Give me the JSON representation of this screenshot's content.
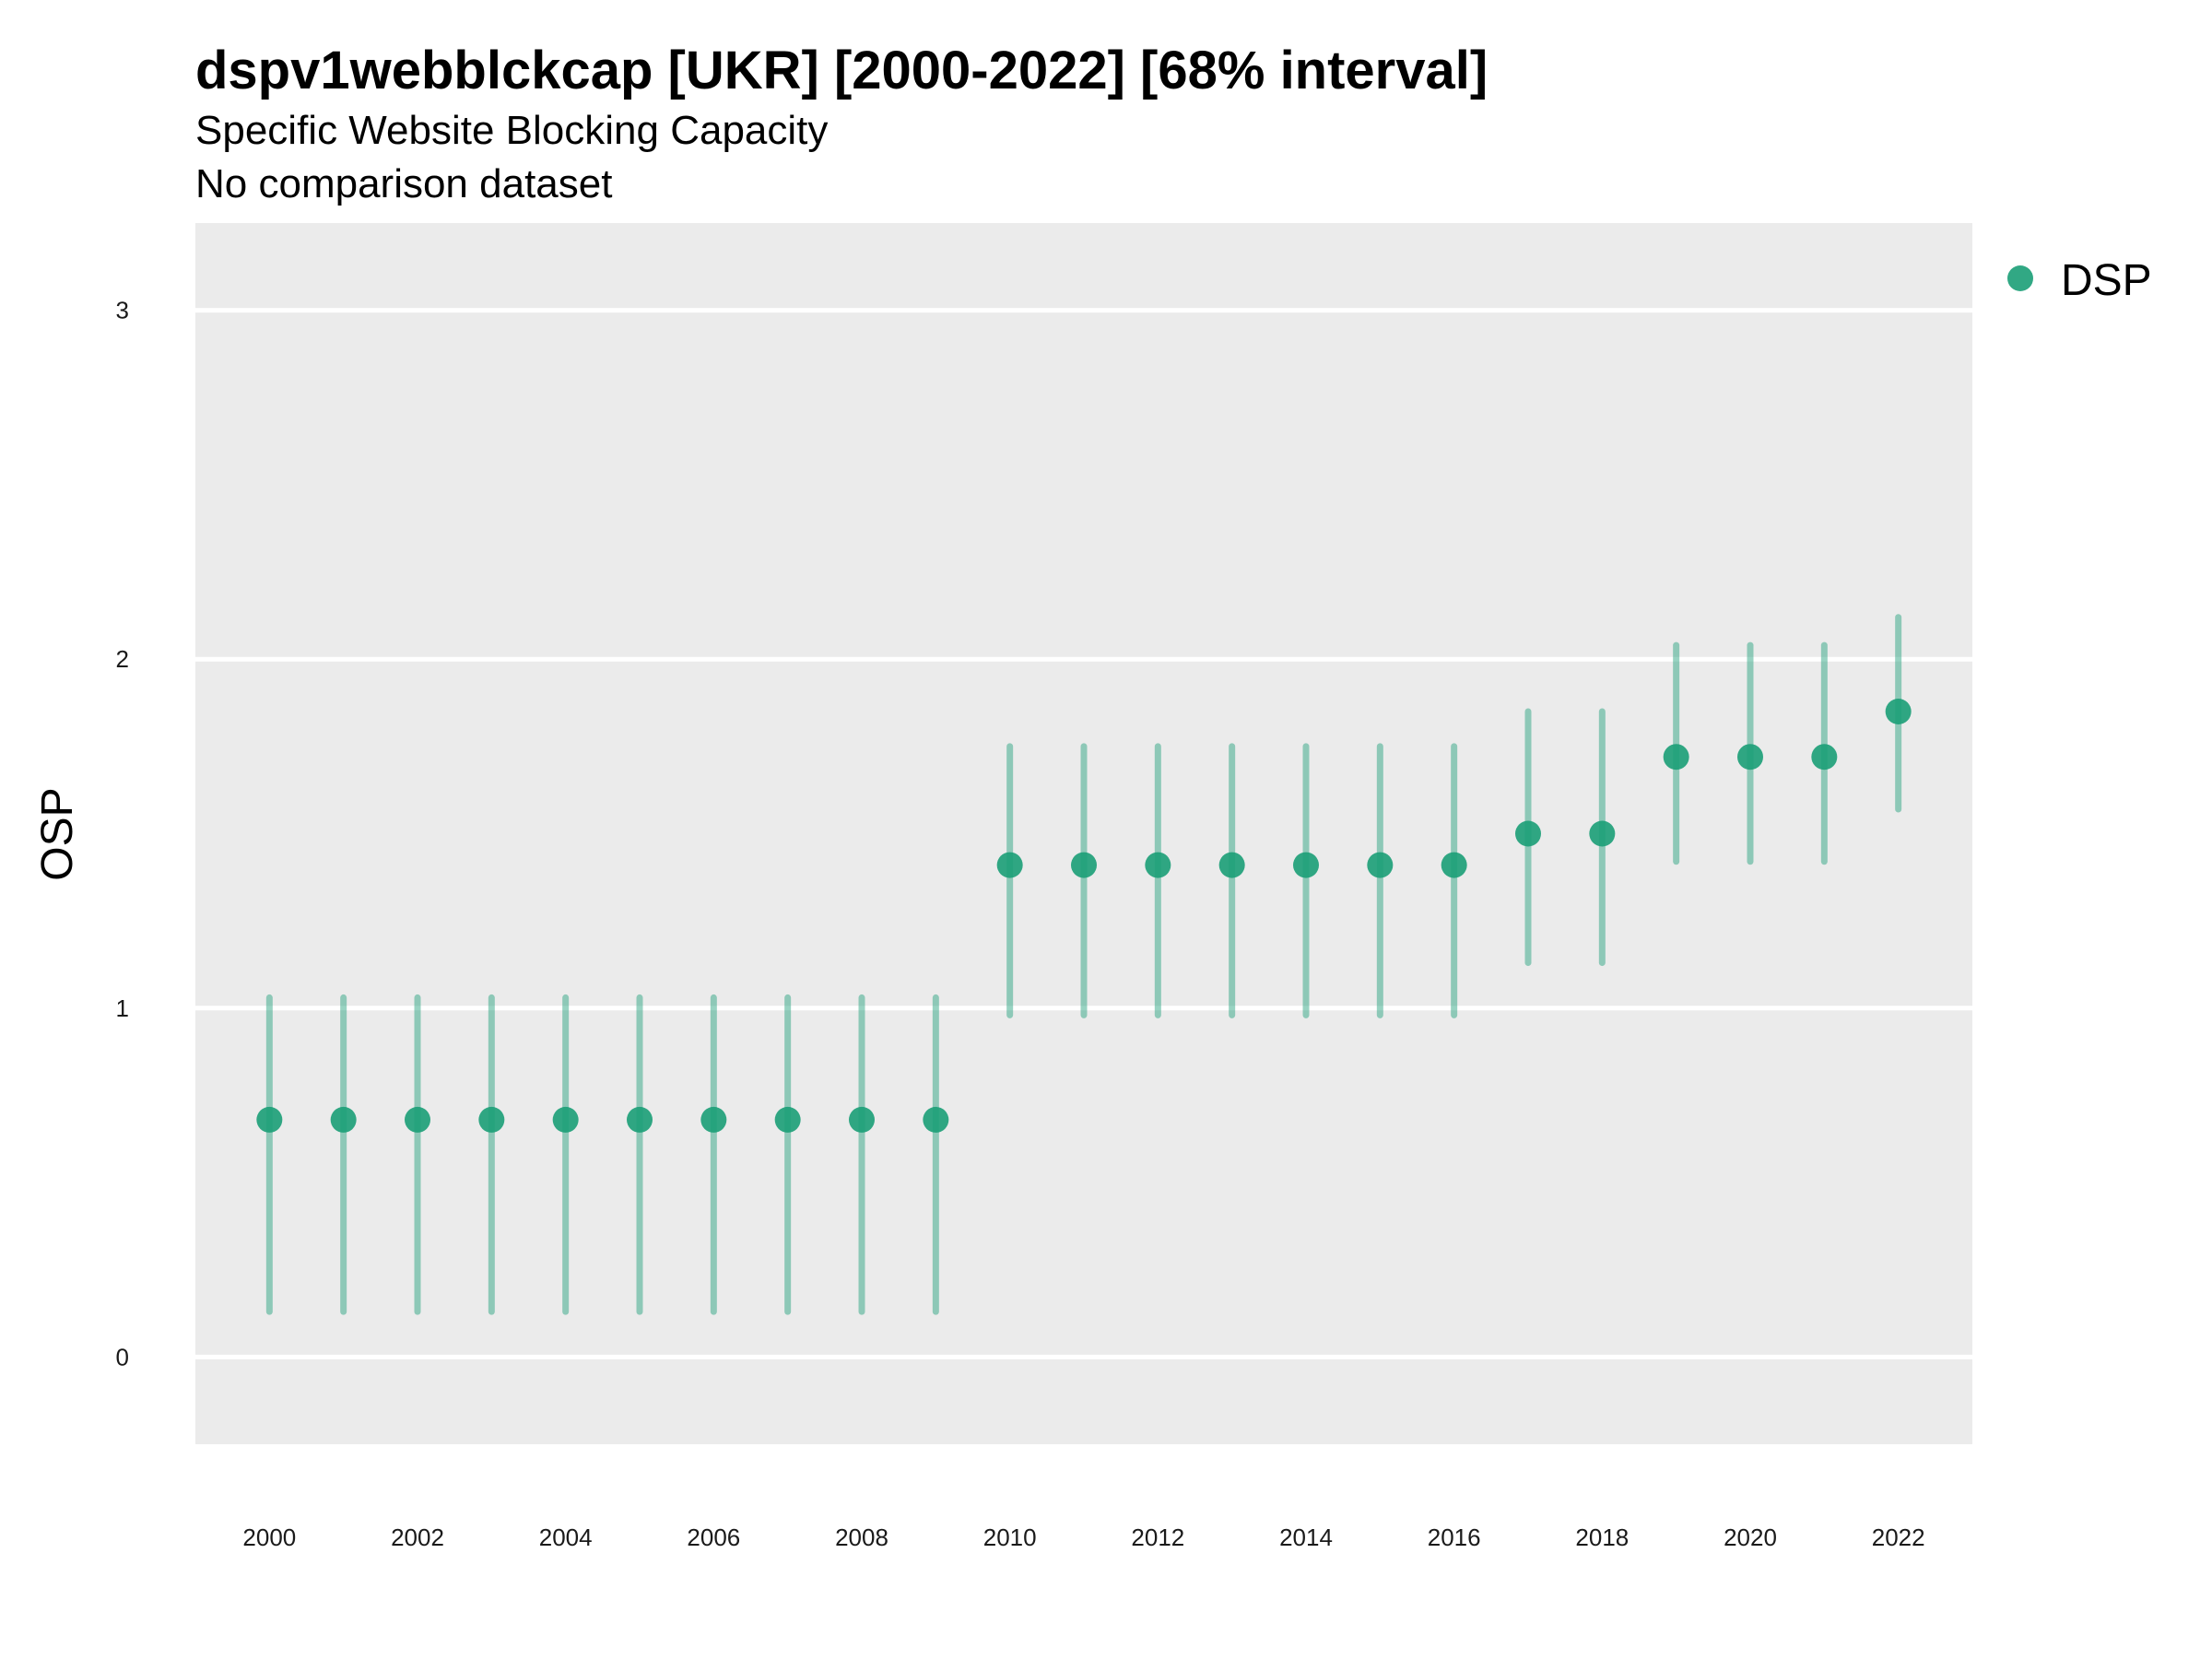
{
  "chart_data": {
    "type": "scatter",
    "title": "dspv1webblckcap [UKR] [2000-2022] [68% interval]",
    "subtitle": "Specific Website Blocking Capacity",
    "caption": "No comparison dataset",
    "xlabel": "",
    "ylabel": "OSP",
    "xlim": [
      1999,
      2023
    ],
    "ylim": [
      -0.25,
      3.25
    ],
    "y_ticks": [
      0,
      1,
      2,
      3
    ],
    "x_ticks": [
      2000,
      2002,
      2004,
      2006,
      2008,
      2010,
      2012,
      2014,
      2016,
      2018,
      2020,
      2022
    ],
    "grid": true,
    "legend_position": "right",
    "series": [
      {
        "name": "DSP",
        "color": "#1B9E77",
        "x": [
          2000,
          2001,
          2002,
          2003,
          2004,
          2005,
          2006,
          2007,
          2008,
          2009,
          2010,
          2011,
          2012,
          2013,
          2014,
          2015,
          2016,
          2017,
          2018,
          2019,
          2020,
          2021,
          2022
        ],
        "y": [
          0.68,
          0.68,
          0.68,
          0.68,
          0.68,
          0.68,
          0.68,
          0.68,
          0.68,
          0.68,
          1.41,
          1.41,
          1.41,
          1.41,
          1.41,
          1.41,
          1.41,
          1.5,
          1.5,
          1.72,
          1.72,
          1.72,
          1.85
        ],
        "lower": [
          0.13,
          0.13,
          0.13,
          0.13,
          0.13,
          0.13,
          0.13,
          0.13,
          0.13,
          0.13,
          0.98,
          0.98,
          0.98,
          0.98,
          0.98,
          0.98,
          0.98,
          1.13,
          1.13,
          1.42,
          1.42,
          1.42,
          1.57
        ],
        "upper": [
          1.03,
          1.03,
          1.03,
          1.03,
          1.03,
          1.03,
          1.03,
          1.03,
          1.03,
          1.03,
          1.75,
          1.75,
          1.75,
          1.75,
          1.75,
          1.75,
          1.75,
          1.85,
          1.85,
          2.04,
          2.04,
          2.04,
          2.12
        ]
      }
    ]
  }
}
